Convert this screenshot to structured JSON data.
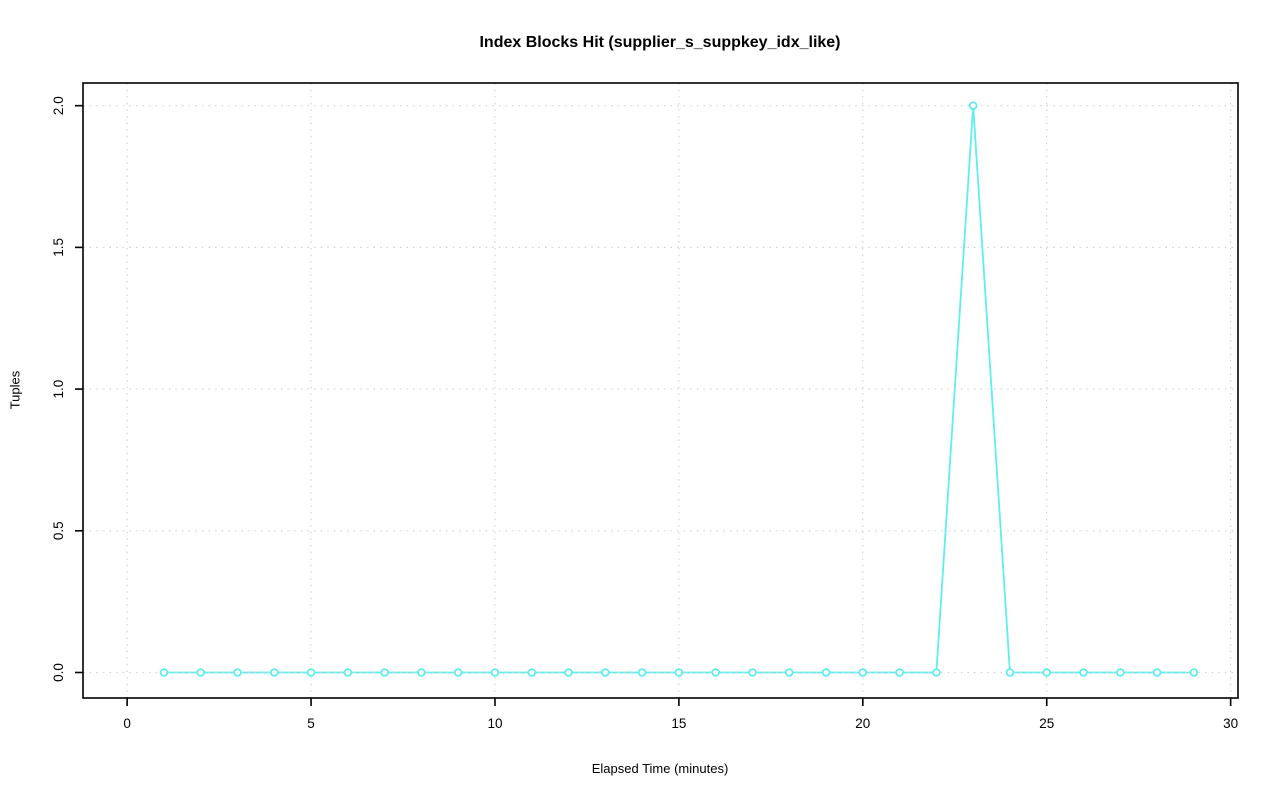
{
  "chart_data": {
    "type": "line",
    "title": "Index Blocks Hit (supplier_s_suppkey_idx_like)",
    "xlabel": "Elapsed Time (minutes)",
    "ylabel": "Tuples",
    "x": [
      1,
      2,
      3,
      4,
      5,
      6,
      7,
      8,
      9,
      10,
      11,
      12,
      13,
      14,
      15,
      16,
      17,
      18,
      19,
      20,
      21,
      22,
      23,
      24,
      25,
      26,
      27,
      28,
      29
    ],
    "y": [
      0,
      0,
      0,
      0,
      0,
      0,
      0,
      0,
      0,
      0,
      0,
      0,
      0,
      0,
      0,
      0,
      0,
      0,
      0,
      0,
      0,
      0,
      2,
      0,
      0,
      0,
      0,
      0,
      0
    ],
    "x_ticks": [
      0,
      5,
      10,
      15,
      20,
      25,
      30
    ],
    "x_tick_labels": [
      "0",
      "5",
      "10",
      "15",
      "20",
      "25",
      "30"
    ],
    "y_ticks": [
      0.0,
      0.5,
      1.0,
      1.5,
      2.0
    ],
    "y_tick_labels": [
      "0.0",
      "0.5",
      "1.0",
      "1.5",
      "2.0"
    ],
    "xlim": [
      -1.2,
      30.2
    ],
    "ylim": [
      -0.09,
      2.08
    ],
    "grid": "dotted",
    "legend": "none",
    "marker": "open-circle",
    "colors": {
      "line": "#5feded",
      "marker_fill": "#ffffff",
      "grid": "#d4d4d4",
      "box": "#000000",
      "text": "#000000"
    }
  }
}
